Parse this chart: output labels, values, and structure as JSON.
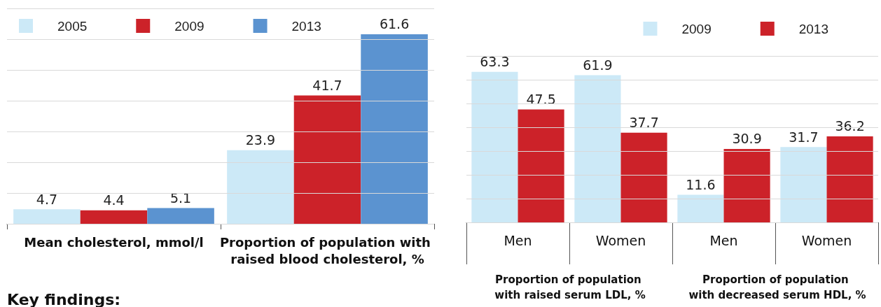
{
  "chart_data": [
    {
      "type": "bar",
      "categories": [
        "Mean cholesterol, mmol/l",
        "Proportion of population with raised blood cholesterol, %"
      ],
      "series": [
        {
          "name": "2005",
          "color": "#cce9f7",
          "values": [
            4.7,
            23.9
          ]
        },
        {
          "name": "2009",
          "color": "#cc2229",
          "values": [
            4.4,
            41.7
          ]
        },
        {
          "name": "2013",
          "color": "#5b93d0",
          "values": [
            5.1,
            61.6
          ]
        }
      ],
      "ylim": [
        0,
        70
      ],
      "yticks": [
        {
          "value": 0,
          "label": null
        },
        {
          "value": 10,
          "label": null
        },
        {
          "value": 20,
          "label": null
        },
        {
          "value": 30,
          "label": null
        },
        {
          "value": 40,
          "label": null
        },
        {
          "value": 50,
          "label": null
        },
        {
          "value": 60,
          "label": null
        },
        {
          "value": 70,
          "label": null
        }
      ],
      "grid": "y",
      "legend": "top left",
      "tick_labels": "x",
      "data_labels": true,
      "annotations": [
        "Key findings:"
      ]
    },
    {
      "type": "bar",
      "categories": [
        "Men",
        "Women",
        "Men",
        "Women"
      ],
      "series": [
        {
          "name": "2009",
          "color": "#cce9f7",
          "values": [
            63.3,
            61.9,
            11.6,
            31.7
          ]
        },
        {
          "name": "2013",
          "color": "#cc2229",
          "values": [
            47.5,
            37.7,
            30.9,
            36.2
          ]
        }
      ],
      "ylim": [
        0,
        70
      ],
      "yticks": [
        {
          "value": 0,
          "label": null
        },
        {
          "value": 10,
          "label": null
        },
        {
          "value": 20,
          "label": null
        },
        {
          "value": 30,
          "label": null
        },
        {
          "value": 40,
          "label": null
        },
        {
          "value": 50,
          "label": null
        },
        {
          "value": 60,
          "label": null
        },
        {
          "value": 70,
          "label": null
        }
      ],
      "grid": "y",
      "legend": "top right",
      "tick_labels": "x",
      "data_labels": true,
      "annotations": [
        "Proportion of population with raised serum LDL, %",
        "Proportion of population with decreased serum HDL, %"
      ]
    }
  ]
}
